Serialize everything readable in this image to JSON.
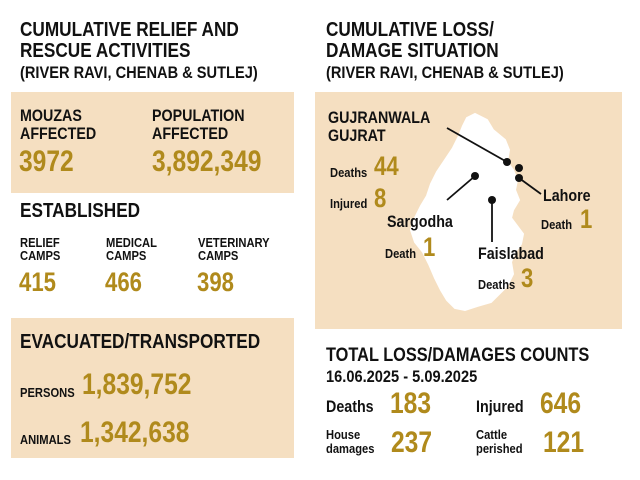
{
  "relief": {
    "title_line1": "CUMULATIVE RELIEF AND",
    "title_line2": "RESCUE ACTIVITIES",
    "subtitle": "(RIVER RAVI, CHENAB & SUTLEJ)",
    "mouzas_label_1": "MOUZAS",
    "mouzas_label_2": "AFFECTED",
    "mouzas_value": "3972",
    "population_label_1": "POPULATION",
    "population_label_2": "AFFECTED",
    "population_value": "3,892,349",
    "established_title": "ESTABLISHED",
    "camps": [
      {
        "label_1": "RELIEF",
        "label_2": "CAMPS",
        "value": "415"
      },
      {
        "label_1": "MEDICAL",
        "label_2": "CAMPS",
        "value": "466"
      },
      {
        "label_1": "VETERINARY",
        "label_2": "CAMPS",
        "value": "398"
      }
    ],
    "evacuated_title": "EVACUATED/TRANSPORTED",
    "persons_label": "PERSONS",
    "persons_value": "1,839,752",
    "animals_label": "ANIMALS",
    "animals_value": "1,342,638"
  },
  "loss": {
    "title_line1": "CUMULATIVE LOSS/",
    "title_line2": "DAMAGE SITUATION",
    "subtitle": "(RIVER RAVI, CHENAB & SUTLEJ)",
    "map": {
      "gujranwala": "GUJRANWALA",
      "gujrat": "GUJRAT",
      "deaths_label": "Deaths",
      "deaths_value": "44",
      "injured_label": "Injured",
      "injured_value": "8",
      "lahore": "Lahore",
      "lahore_death_label": "Death",
      "lahore_death_value": "1",
      "sargodha": "Sargodha",
      "sargodha_death_label": "Death",
      "sargodha_death_value": "1",
      "faislabad": "Faislabad",
      "faislabad_deaths_label": "Deaths",
      "faislabad_deaths_value": "3"
    }
  },
  "totals": {
    "title": "TOTAL LOSS/DAMAGES COUNTS",
    "date_range": "16.06.2025 - 5.09.2025",
    "deaths_label": "Deaths",
    "deaths_value": "183",
    "injured_label": "Injured",
    "injured_value": "646",
    "house_label_1": "House",
    "house_label_2": "damages",
    "house_value": "237",
    "cattle_label_1": "Cattle",
    "cattle_label_2": "perished",
    "cattle_value": "121"
  },
  "colors": {
    "panel": "#f5dfc1",
    "gold": "#b08a1c",
    "text": "#111111",
    "map_fill": "#ffffff"
  }
}
